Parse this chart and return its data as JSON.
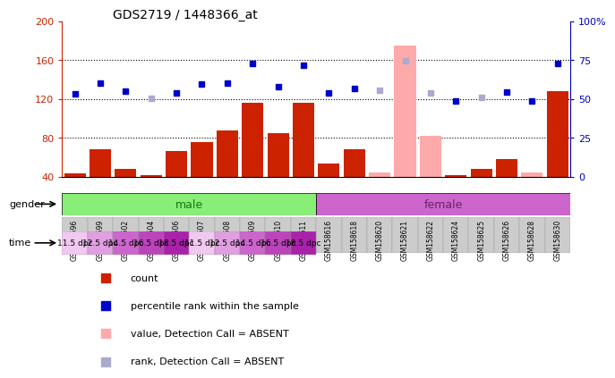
{
  "title": "GDS2719 / 1448366_at",
  "samples": [
    "GSM158596",
    "GSM158599",
    "GSM158602",
    "GSM158604",
    "GSM158606",
    "GSM158607",
    "GSM158608",
    "GSM158609",
    "GSM158610",
    "GSM158611",
    "GSM158616",
    "GSM158618",
    "GSM158620",
    "GSM158621",
    "GSM158622",
    "GSM158624",
    "GSM158625",
    "GSM158626",
    "GSM158628",
    "GSM158630"
  ],
  "bar_values": [
    43,
    68,
    48,
    42,
    66,
    76,
    88,
    116,
    85,
    116,
    54,
    68,
    44,
    175,
    82,
    42,
    48,
    58,
    44,
    128
  ],
  "bar_absent": [
    false,
    false,
    false,
    false,
    false,
    false,
    false,
    false,
    false,
    false,
    false,
    false,
    true,
    true,
    true,
    false,
    false,
    false,
    true,
    false
  ],
  "rank_values": [
    125,
    136,
    128,
    121,
    126,
    135,
    136,
    157,
    133,
    155,
    126,
    131,
    129,
    159,
    126,
    118,
    122,
    127,
    118,
    157
  ],
  "rank_absent": [
    false,
    false,
    false,
    true,
    false,
    false,
    false,
    false,
    false,
    false,
    false,
    false,
    true,
    true,
    true,
    false,
    true,
    false,
    false,
    false
  ],
  "ylim_left": [
    40,
    200
  ],
  "ylim_right": [
    0,
    100
  ],
  "yticks_left": [
    40,
    80,
    120,
    160,
    200
  ],
  "yticks_right": [
    0,
    25,
    50,
    75,
    100
  ],
  "ytick_labels_left": [
    "40",
    "80",
    "120",
    "160",
    "200"
  ],
  "ytick_labels_right": [
    "0",
    "25",
    "50",
    "75",
    "100%"
  ],
  "bar_color_present": "#cc2200",
  "bar_color_absent": "#ffaaaa",
  "rank_color_present": "#0000cc",
  "rank_color_absent": "#aaaacc",
  "gender_male_color": "#88ee77",
  "gender_female_color": "#cc66cc",
  "male_samples_count": 10,
  "male_label": "male",
  "female_label": "female",
  "gender_label": "gender",
  "time_label": "time",
  "time_groups": [
    {
      "label": "11.5 dpc",
      "color": "#f0c8f0"
    },
    {
      "label": "12.5 dpc",
      "color": "#e0a0e0"
    },
    {
      "label": "14.5 dpc",
      "color": "#cc66cc"
    },
    {
      "label": "16.5 dpc",
      "color": "#bb44bb"
    },
    {
      "label": "18.5 dpc",
      "color": "#aa22aa"
    }
  ],
  "legend_items": [
    {
      "label": "count",
      "color": "#cc2200"
    },
    {
      "label": "percentile rank within the sample",
      "color": "#0000cc"
    },
    {
      "label": "value, Detection Call = ABSENT",
      "color": "#ffaaaa"
    },
    {
      "label": "rank, Detection Call = ABSENT",
      "color": "#aaaacc"
    }
  ],
  "axis_color_left": "#cc2200",
  "axis_color_right": "#0000bb",
  "gridline_color": "#000000",
  "sample_label_bg": "#cccccc"
}
